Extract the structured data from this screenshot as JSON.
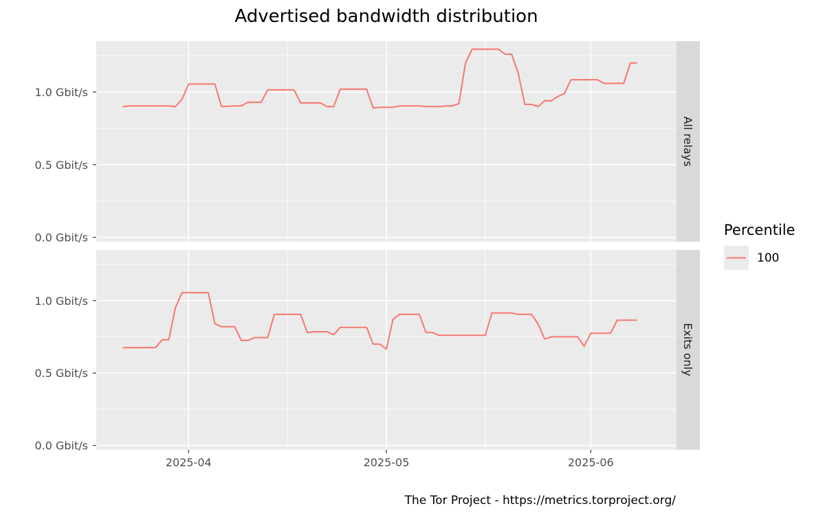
{
  "chart_data": {
    "type": "line",
    "title": "Advertised bandwidth distribution",
    "caption": "The Tor Project - https://metrics.torproject.org/",
    "x_ticks": [
      "2025-04",
      "2025-05",
      "2025-06"
    ],
    "y_ticks": [
      "0.0 Gbit/s",
      "0.5 Gbit/s",
      "1.0 Gbit/s"
    ],
    "y_tick_values": [
      0.0,
      0.5,
      1.0
    ],
    "ylim": [
      -0.03,
      1.35
    ],
    "xlim": [
      "2025-03-18",
      "2025-06-14"
    ],
    "grid": true,
    "legend": {
      "title": "Percentile",
      "placement": "right",
      "entries": [
        {
          "label": "100",
          "color": "#F8766D"
        }
      ]
    },
    "series_color": "#F8766D",
    "panels": [
      {
        "strip_label": "All relays",
        "values": [
          [
            "2025-03-22",
            0.9
          ],
          [
            "2025-03-23",
            0.905
          ],
          [
            "2025-03-29",
            0.905
          ],
          [
            "2025-03-30",
            0.9
          ],
          [
            "2025-03-31",
            0.95
          ],
          [
            "2025-04-01",
            1.055
          ],
          [
            "2025-04-05",
            1.055
          ],
          [
            "2025-04-06",
            0.9
          ],
          [
            "2025-04-08",
            0.905
          ],
          [
            "2025-04-09",
            0.905
          ],
          [
            "2025-04-10",
            0.93
          ],
          [
            "2025-04-12",
            0.93
          ],
          [
            "2025-04-13",
            1.015
          ],
          [
            "2025-04-17",
            1.015
          ],
          [
            "2025-04-18",
            0.925
          ],
          [
            "2025-04-21",
            0.925
          ],
          [
            "2025-04-22",
            0.9
          ],
          [
            "2025-04-23",
            0.9
          ],
          [
            "2025-04-24",
            1.02
          ],
          [
            "2025-04-28",
            1.02
          ],
          [
            "2025-04-29",
            0.89
          ],
          [
            "2025-04-30",
            0.895
          ],
          [
            "2025-05-02",
            0.895
          ],
          [
            "2025-05-03",
            0.905
          ],
          [
            "2025-05-06",
            0.905
          ],
          [
            "2025-05-07",
            0.9
          ],
          [
            "2025-05-09",
            0.9
          ],
          [
            "2025-05-10",
            0.905
          ],
          [
            "2025-05-11",
            0.905
          ],
          [
            "2025-05-12",
            0.92
          ],
          [
            "2025-05-13",
            1.2
          ],
          [
            "2025-05-14",
            1.295
          ],
          [
            "2025-05-18",
            1.295
          ],
          [
            "2025-05-19",
            1.26
          ],
          [
            "2025-05-20",
            1.26
          ],
          [
            "2025-05-21",
            1.13
          ],
          [
            "2025-05-22",
            0.915
          ],
          [
            "2025-05-23",
            0.915
          ],
          [
            "2025-05-24",
            0.9
          ],
          [
            "2025-05-25",
            0.94
          ],
          [
            "2025-05-26",
            0.94
          ],
          [
            "2025-05-27",
            0.97
          ],
          [
            "2025-05-28",
            0.99
          ],
          [
            "2025-05-29",
            1.085
          ],
          [
            "2025-06-02",
            1.085
          ],
          [
            "2025-06-03",
            1.06
          ],
          [
            "2025-06-06",
            1.06
          ],
          [
            "2025-06-07",
            1.2
          ],
          [
            "2025-06-08",
            1.2
          ]
        ]
      },
      {
        "strip_label": "Exits only",
        "values": [
          [
            "2025-03-22",
            0.675
          ],
          [
            "2025-03-27",
            0.675
          ],
          [
            "2025-03-28",
            0.73
          ],
          [
            "2025-03-29",
            0.73
          ],
          [
            "2025-03-30",
            0.95
          ],
          [
            "2025-03-31",
            1.055
          ],
          [
            "2025-04-04",
            1.055
          ],
          [
            "2025-04-05",
            0.84
          ],
          [
            "2025-04-06",
            0.82
          ],
          [
            "2025-04-08",
            0.82
          ],
          [
            "2025-04-09",
            0.725
          ],
          [
            "2025-04-10",
            0.725
          ],
          [
            "2025-04-11",
            0.745
          ],
          [
            "2025-04-13",
            0.745
          ],
          [
            "2025-04-14",
            0.905
          ],
          [
            "2025-04-18",
            0.905
          ],
          [
            "2025-04-19",
            0.78
          ],
          [
            "2025-04-20",
            0.785
          ],
          [
            "2025-04-22",
            0.785
          ],
          [
            "2025-04-23",
            0.765
          ],
          [
            "2025-04-24",
            0.815
          ],
          [
            "2025-04-28",
            0.815
          ],
          [
            "2025-04-29",
            0.7
          ],
          [
            "2025-04-30",
            0.7
          ],
          [
            "2025-05-01",
            0.665
          ],
          [
            "2025-05-02",
            0.87
          ],
          [
            "2025-05-03",
            0.905
          ],
          [
            "2025-05-06",
            0.905
          ],
          [
            "2025-05-07",
            0.78
          ],
          [
            "2025-05-08",
            0.78
          ],
          [
            "2025-05-09",
            0.76
          ],
          [
            "2025-05-12",
            0.76
          ],
          [
            "2025-05-16",
            0.76
          ],
          [
            "2025-05-17",
            0.915
          ],
          [
            "2025-05-20",
            0.915
          ],
          [
            "2025-05-21",
            0.905
          ],
          [
            "2025-05-23",
            0.905
          ],
          [
            "2025-05-24",
            0.84
          ],
          [
            "2025-05-25",
            0.735
          ],
          [
            "2025-05-26",
            0.75
          ],
          [
            "2025-05-30",
            0.75
          ],
          [
            "2025-05-31",
            0.685
          ],
          [
            "2025-06-01",
            0.775
          ],
          [
            "2025-06-04",
            0.775
          ],
          [
            "2025-06-05",
            0.865
          ],
          [
            "2025-06-08",
            0.865
          ]
        ]
      }
    ]
  }
}
